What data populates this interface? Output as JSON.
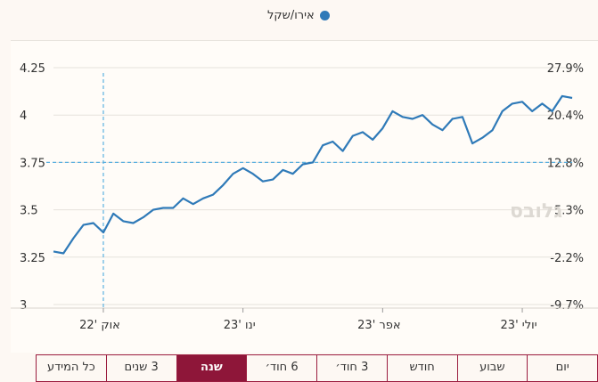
{
  "legend": {
    "label": "אירו/שקל",
    "color": "#2f7ab8"
  },
  "watermark": "גלובס",
  "tabs": [
    {
      "label": "יום",
      "active": false
    },
    {
      "label": "שבוע",
      "active": false
    },
    {
      "label": "חודש",
      "active": false
    },
    {
      "label": "3 חוד׳",
      "active": false
    },
    {
      "label": "6 חוד׳",
      "active": false
    },
    {
      "label": "שנה",
      "active": true
    },
    {
      "label": "3 שנים",
      "active": false
    },
    {
      "label": "כל המידע",
      "active": false
    }
  ],
  "colors": {
    "line": "#2f7ab8",
    "crosshair": "#5ab0e0",
    "accent": "#8e1639"
  },
  "chart_data": {
    "type": "line",
    "title": "",
    "xlabel": "",
    "ylabel": "",
    "ylim": [
      3,
      4.25
    ],
    "yticks": [
      3,
      3.25,
      3.5,
      3.75,
      4,
      4.25
    ],
    "right_axis_ticks": [
      "27.9%",
      "20.4%",
      "12.8%",
      "5.3%",
      "-2.2%",
      "-9.7%"
    ],
    "x_tick_labels": [
      "אוק '22",
      "ינו '23",
      "אפר '23",
      "יולי '23"
    ],
    "crosshair": {
      "x_label": "אוק '22",
      "y_value": 3.75
    },
    "grid": "horizontal",
    "series": [
      {
        "values": [
          3.28,
          3.27,
          3.35,
          3.42,
          3.43,
          3.38,
          3.48,
          3.44,
          3.43,
          3.46,
          3.5,
          3.51,
          3.51,
          3.56,
          3.53,
          3.56,
          3.58,
          3.63,
          3.69,
          3.72,
          3.69,
          3.65,
          3.66,
          3.71,
          3.69,
          3.74,
          3.75,
          3.84,
          3.86,
          3.81,
          3.89,
          3.91,
          3.87,
          3.93,
          4.02,
          3.99,
          3.98,
          4.0,
          3.95,
          3.92,
          3.98,
          3.99,
          3.85,
          3.88,
          3.92,
          4.02,
          4.06,
          4.07,
          4.02,
          4.06,
          4.02,
          4.1,
          4.09
        ]
      }
    ]
  }
}
